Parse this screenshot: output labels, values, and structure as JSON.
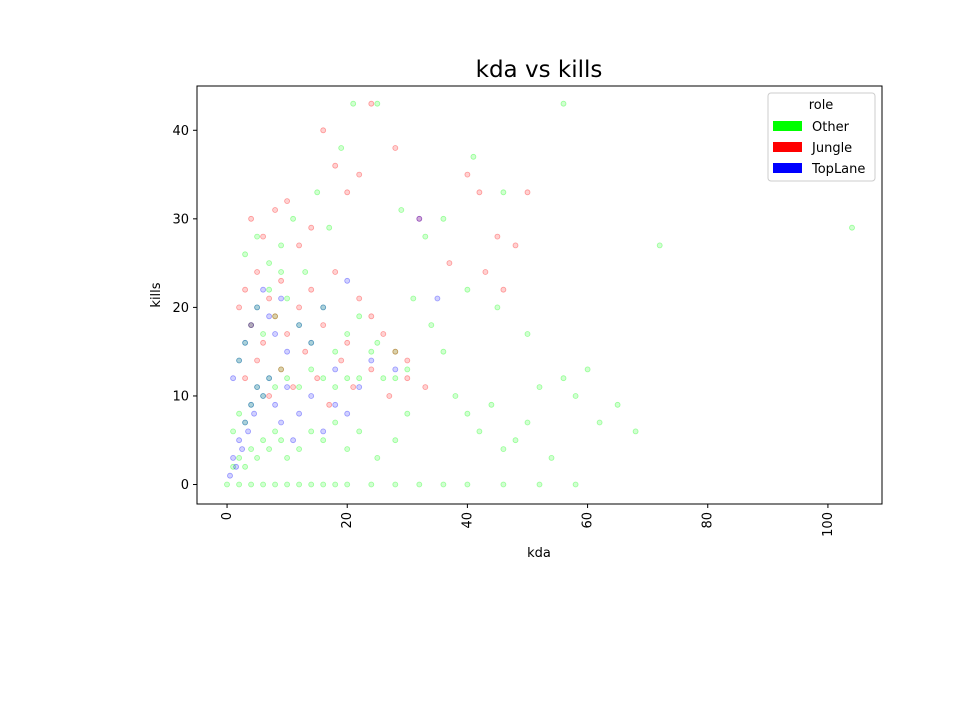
{
  "chart_data": {
    "type": "scatter",
    "title": "kda vs kills",
    "xlabel": "kda",
    "ylabel": "kills",
    "xlim": [
      -5,
      109
    ],
    "ylim": [
      -2.2,
      45
    ],
    "x_ticks": [
      0,
      20,
      40,
      60,
      80,
      100
    ],
    "y_ticks": [
      0,
      10,
      20,
      30,
      40
    ],
    "x_tick_rotation": 90,
    "grid": false,
    "legend": {
      "title": "role",
      "placement": "top-right"
    },
    "series": [
      {
        "name": "Other",
        "color": "#00ff00",
        "points": [
          [
            0,
            0
          ],
          [
            2,
            0
          ],
          [
            4,
            0
          ],
          [
            6,
            0
          ],
          [
            8,
            0
          ],
          [
            10,
            0
          ],
          [
            12,
            0
          ],
          [
            14,
            0
          ],
          [
            16,
            0
          ],
          [
            18,
            0
          ],
          [
            20,
            0
          ],
          [
            24,
            0
          ],
          [
            28,
            0
          ],
          [
            32,
            0
          ],
          [
            36,
            0
          ],
          [
            40,
            0
          ],
          [
            46,
            0
          ],
          [
            52,
            0
          ],
          [
            58,
            0
          ],
          [
            1,
            2
          ],
          [
            2,
            3
          ],
          [
            3,
            2
          ],
          [
            4,
            4
          ],
          [
            5,
            3
          ],
          [
            6,
            5
          ],
          [
            7,
            4
          ],
          [
            8,
            6
          ],
          [
            9,
            5
          ],
          [
            10,
            3
          ],
          [
            12,
            4
          ],
          [
            14,
            6
          ],
          [
            16,
            5
          ],
          [
            18,
            7
          ],
          [
            20,
            4
          ],
          [
            22,
            6
          ],
          [
            25,
            3
          ],
          [
            28,
            5
          ],
          [
            30,
            8
          ],
          [
            1,
            6
          ],
          [
            2,
            8
          ],
          [
            3,
            7
          ],
          [
            4,
            9
          ],
          [
            5,
            11
          ],
          [
            6,
            10
          ],
          [
            7,
            12
          ],
          [
            8,
            11
          ],
          [
            9,
            13
          ],
          [
            10,
            12
          ],
          [
            12,
            11
          ],
          [
            14,
            13
          ],
          [
            16,
            12
          ],
          [
            18,
            11
          ],
          [
            20,
            12
          ],
          [
            22,
            12
          ],
          [
            24,
            15
          ],
          [
            26,
            12
          ],
          [
            28,
            12
          ],
          [
            30,
            13
          ],
          [
            2,
            14
          ],
          [
            3,
            16
          ],
          [
            4,
            18
          ],
          [
            5,
            20
          ],
          [
            6,
            17
          ],
          [
            7,
            22
          ],
          [
            8,
            19
          ],
          [
            9,
            24
          ],
          [
            10,
            21
          ],
          [
            12,
            18
          ],
          [
            14,
            16
          ],
          [
            16,
            20
          ],
          [
            18,
            15
          ],
          [
            20,
            17
          ],
          [
            22,
            19
          ],
          [
            25,
            16
          ],
          [
            28,
            15
          ],
          [
            31,
            21
          ],
          [
            34,
            18
          ],
          [
            36,
            15
          ],
          [
            3,
            26
          ],
          [
            5,
            28
          ],
          [
            7,
            25
          ],
          [
            9,
            27
          ],
          [
            11,
            30
          ],
          [
            13,
            24
          ],
          [
            15,
            33
          ],
          [
            17,
            29
          ],
          [
            19,
            38
          ],
          [
            21,
            43
          ],
          [
            25,
            43
          ],
          [
            29,
            31
          ],
          [
            33,
            28
          ],
          [
            36,
            30
          ],
          [
            40,
            22
          ],
          [
            45,
            20
          ],
          [
            50,
            17
          ],
          [
            38,
            10
          ],
          [
            40,
            8
          ],
          [
            42,
            6
          ],
          [
            44,
            9
          ],
          [
            46,
            4
          ],
          [
            48,
            5
          ],
          [
            50,
            7
          ],
          [
            52,
            11
          ],
          [
            54,
            3
          ],
          [
            56,
            12
          ],
          [
            58,
            10
          ],
          [
            60,
            13
          ],
          [
            62,
            7
          ],
          [
            65,
            9
          ],
          [
            68,
            6
          ],
          [
            72,
            27
          ],
          [
            104,
            29
          ],
          [
            56,
            43
          ],
          [
            41,
            37
          ],
          [
            46,
            33
          ]
        ]
      },
      {
        "name": "Jungle",
        "color": "#ff0000",
        "points": [
          [
            2,
            20
          ],
          [
            3,
            22
          ],
          [
            4,
            18
          ],
          [
            5,
            24
          ],
          [
            6,
            16
          ],
          [
            7,
            21
          ],
          [
            8,
            19
          ],
          [
            9,
            23
          ],
          [
            10,
            17
          ],
          [
            12,
            20
          ],
          [
            14,
            22
          ],
          [
            16,
            18
          ],
          [
            18,
            24
          ],
          [
            20,
            16
          ],
          [
            22,
            21
          ],
          [
            24,
            19
          ],
          [
            26,
            17
          ],
          [
            28,
            15
          ],
          [
            30,
            14
          ],
          [
            3,
            12
          ],
          [
            5,
            14
          ],
          [
            7,
            10
          ],
          [
            9,
            13
          ],
          [
            11,
            11
          ],
          [
            13,
            15
          ],
          [
            15,
            12
          ],
          [
            17,
            9
          ],
          [
            19,
            14
          ],
          [
            21,
            11
          ],
          [
            24,
            13
          ],
          [
            27,
            10
          ],
          [
            30,
            12
          ],
          [
            33,
            11
          ],
          [
            4,
            30
          ],
          [
            6,
            28
          ],
          [
            8,
            31
          ],
          [
            10,
            32
          ],
          [
            12,
            27
          ],
          [
            14,
            29
          ],
          [
            16,
            40
          ],
          [
            18,
            36
          ],
          [
            20,
            33
          ],
          [
            22,
            35
          ],
          [
            24,
            43
          ],
          [
            28,
            38
          ],
          [
            32,
            30
          ],
          [
            37,
            25
          ],
          [
            40,
            35
          ],
          [
            42,
            33
          ],
          [
            45,
            28
          ],
          [
            48,
            27
          ],
          [
            50,
            33
          ],
          [
            46,
            22
          ],
          [
            43,
            24
          ]
        ]
      },
      {
        "name": "TopLane",
        "color": "#0000ff",
        "points": [
          [
            0.5,
            1
          ],
          [
            1,
            3
          ],
          [
            1.5,
            2
          ],
          [
            2,
            5
          ],
          [
            2.5,
            4
          ],
          [
            3,
            7
          ],
          [
            3.5,
            6
          ],
          [
            4,
            9
          ],
          [
            4.5,
            8
          ],
          [
            5,
            11
          ],
          [
            6,
            10
          ],
          [
            7,
            12
          ],
          [
            8,
            9
          ],
          [
            9,
            7
          ],
          [
            10,
            11
          ],
          [
            11,
            5
          ],
          [
            12,
            8
          ],
          [
            14,
            10
          ],
          [
            16,
            6
          ],
          [
            18,
            9
          ],
          [
            20,
            8
          ],
          [
            22,
            11
          ],
          [
            1,
            12
          ],
          [
            2,
            14
          ],
          [
            3,
            16
          ],
          [
            4,
            18
          ],
          [
            5,
            20
          ],
          [
            6,
            22
          ],
          [
            7,
            19
          ],
          [
            8,
            17
          ],
          [
            9,
            21
          ],
          [
            10,
            15
          ],
          [
            12,
            18
          ],
          [
            14,
            16
          ],
          [
            16,
            20
          ],
          [
            18,
            13
          ],
          [
            20,
            23
          ],
          [
            24,
            14
          ],
          [
            28,
            13
          ],
          [
            32,
            30
          ],
          [
            35,
            21
          ]
        ]
      }
    ]
  }
}
